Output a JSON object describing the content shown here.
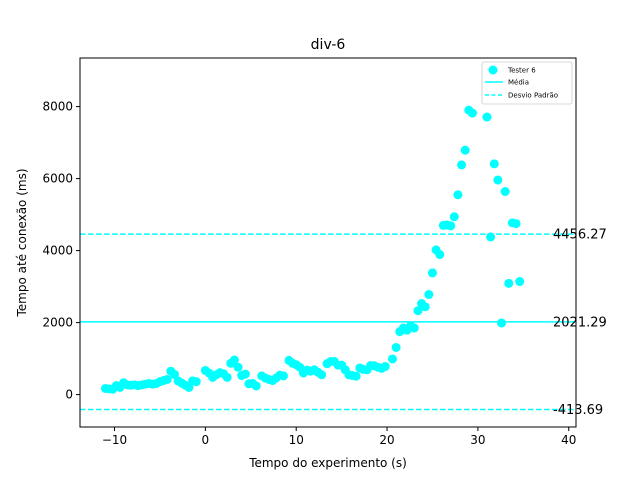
{
  "chart_data": {
    "type": "scatter",
    "title": "div-6",
    "xlabel": "Tempo do experimento (s)",
    "ylabel": "Tempo até conexão (ms)",
    "xlim": [
      -13.8,
      40.8
    ],
    "ylim": [
      -900,
      9350
    ],
    "x_ticks": [
      -10,
      0,
      10,
      20,
      30,
      40
    ],
    "y_ticks": [
      0,
      2000,
      4000,
      6000,
      8000
    ],
    "grid": false,
    "legend_position": "top-right",
    "colors": {
      "series": "#00ffff",
      "mean": "#00ffff",
      "std": "#00ffff",
      "axis": "#000000"
    },
    "series": [
      {
        "name": "Tester 6",
        "marker": "circle",
        "points": [
          [
            -11.0,
            170
          ],
          [
            -10.6,
            160
          ],
          [
            -10.2,
            150
          ],
          [
            -9.8,
            250
          ],
          [
            -9.4,
            200
          ],
          [
            -9.0,
            330
          ],
          [
            -8.6,
            270
          ],
          [
            -8.2,
            260
          ],
          [
            -7.8,
            270
          ],
          [
            -7.4,
            250
          ],
          [
            -7.0,
            270
          ],
          [
            -6.6,
            290
          ],
          [
            -6.2,
            310
          ],
          [
            -5.8,
            290
          ],
          [
            -5.4,
            310
          ],
          [
            -5.0,
            360
          ],
          [
            -4.6,
            390
          ],
          [
            -4.2,
            420
          ],
          [
            -3.8,
            650
          ],
          [
            -3.4,
            560
          ],
          [
            -3.0,
            380
          ],
          [
            -2.6,
            320
          ],
          [
            -2.2,
            260
          ],
          [
            -1.8,
            200
          ],
          [
            -1.4,
            380
          ],
          [
            -1.0,
            360
          ],
          [
            0.0,
            670
          ],
          [
            0.4,
            600
          ],
          [
            0.8,
            480
          ],
          [
            1.2,
            550
          ],
          [
            1.6,
            610
          ],
          [
            2.0,
            580
          ],
          [
            2.4,
            480
          ],
          [
            2.8,
            870
          ],
          [
            3.2,
            960
          ],
          [
            3.6,
            760
          ],
          [
            4.0,
            530
          ],
          [
            4.4,
            570
          ],
          [
            4.8,
            300
          ],
          [
            5.2,
            310
          ],
          [
            5.6,
            240
          ],
          [
            6.2,
            520
          ],
          [
            6.6,
            460
          ],
          [
            7.0,
            420
          ],
          [
            7.4,
            390
          ],
          [
            7.8,
            460
          ],
          [
            8.2,
            540
          ],
          [
            8.6,
            520
          ],
          [
            9.2,
            950
          ],
          [
            9.6,
            870
          ],
          [
            10.0,
            830
          ],
          [
            10.4,
            760
          ],
          [
            10.8,
            600
          ],
          [
            11.2,
            680
          ],
          [
            11.6,
            650
          ],
          [
            12.0,
            690
          ],
          [
            12.4,
            620
          ],
          [
            12.8,
            550
          ],
          [
            13.4,
            860
          ],
          [
            13.8,
            920
          ],
          [
            14.2,
            920
          ],
          [
            14.6,
            820
          ],
          [
            15.0,
            820
          ],
          [
            15.4,
            690
          ],
          [
            15.8,
            550
          ],
          [
            16.2,
            530
          ],
          [
            16.6,
            510
          ],
          [
            17.0,
            740
          ],
          [
            17.4,
            700
          ],
          [
            17.8,
            690
          ],
          [
            18.2,
            810
          ],
          [
            18.6,
            800
          ],
          [
            19.0,
            760
          ],
          [
            19.4,
            730
          ],
          [
            19.8,
            780
          ],
          [
            20.6,
            990
          ],
          [
            21.0,
            1310
          ],
          [
            21.4,
            1750
          ],
          [
            21.8,
            1850
          ],
          [
            22.2,
            1790
          ],
          [
            22.6,
            1910
          ],
          [
            23.0,
            1850
          ],
          [
            23.4,
            2330
          ],
          [
            23.8,
            2530
          ],
          [
            24.2,
            2440
          ],
          [
            24.6,
            2780
          ],
          [
            25.0,
            3380
          ],
          [
            25.4,
            4020
          ],
          [
            25.8,
            3890
          ],
          [
            26.2,
            4700
          ],
          [
            26.6,
            4710
          ],
          [
            27.0,
            4690
          ],
          [
            27.4,
            4940
          ],
          [
            27.8,
            5550
          ],
          [
            28.2,
            6380
          ],
          [
            28.6,
            6790
          ],
          [
            29.0,
            7900
          ],
          [
            29.4,
            7820
          ],
          [
            31.0,
            7710
          ],
          [
            31.4,
            4380
          ],
          [
            31.8,
            6410
          ],
          [
            32.2,
            5960
          ],
          [
            32.6,
            1990
          ],
          [
            33.0,
            5640
          ],
          [
            33.4,
            3090
          ],
          [
            33.8,
            4770
          ],
          [
            34.2,
            4750
          ],
          [
            34.6,
            3140
          ]
        ]
      }
    ],
    "mean": {
      "name": "Média",
      "value": 2021.29,
      "label": "2021.29"
    },
    "std_lines": [
      {
        "value": 4456.27,
        "label": "4456.27"
      },
      {
        "value": -413.69,
        "label": "-413.69"
      }
    ],
    "legend": [
      {
        "label": "Tester 6",
        "kind": "marker"
      },
      {
        "label": "Média",
        "kind": "solid"
      },
      {
        "label": "Desvio Padrão",
        "kind": "dashed"
      }
    ]
  }
}
